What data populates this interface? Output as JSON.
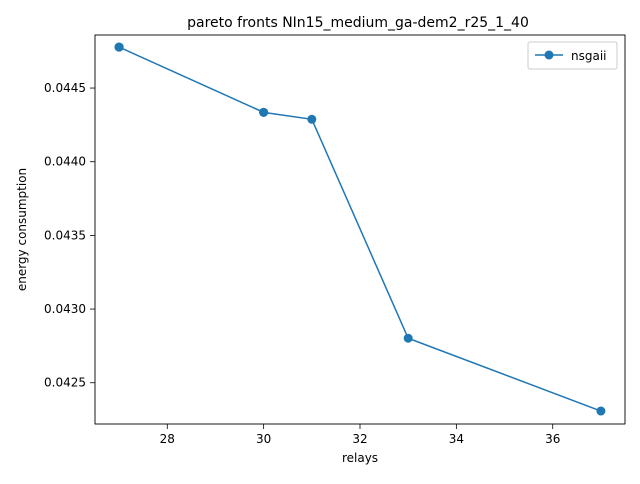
{
  "chart_data": {
    "type": "line",
    "title": "pareto fronts NIn15_medium_ga-dem2_r25_1_40",
    "xlabel": "relays",
    "ylabel": "energy consumption",
    "xlim": [
      26.5,
      37.5
    ],
    "ylim": [
      0.04222,
      0.04486
    ],
    "xticks": [
      28,
      30,
      32,
      34,
      36
    ],
    "yticks": [
      0.0425,
      0.043,
      0.0435,
      0.044,
      0.0445
    ],
    "xtick_labels": [
      "28",
      "30",
      "32",
      "34",
      "36"
    ],
    "ytick_labels": [
      "0.0425",
      "0.0430",
      "0.0435",
      "0.0440",
      "0.0445"
    ],
    "grid": false,
    "legend_position": "top-right",
    "series": [
      {
        "name": "nsgaii",
        "color": "#1f77b4",
        "marker": "circle",
        "x": [
          27,
          27,
          27,
          30,
          30,
          31,
          33,
          37
        ],
        "y": [
          0.044778,
          0.044778,
          0.044778,
          0.044335,
          0.044335,
          0.044288,
          0.042802,
          0.042308
        ]
      }
    ]
  }
}
